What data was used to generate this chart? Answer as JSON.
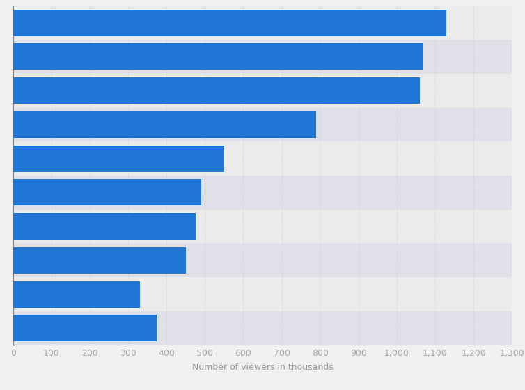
{
  "values": [
    1130,
    1070,
    1060,
    790,
    550,
    490,
    475,
    450,
    330,
    375
  ],
  "bar_color": "#2076D4",
  "background_color": "#f0f0f0",
  "plot_background_color": "#e8e8e8",
  "row_color_odd": "#ebebeb",
  "row_color_even": "#e0e0e8",
  "xlabel": "Number of viewers in thousands",
  "xlim": [
    0,
    1300
  ],
  "xticks": [
    0,
    100,
    200,
    300,
    400,
    500,
    600,
    700,
    800,
    900,
    1000,
    1100,
    1200,
    1300
  ],
  "grid_color": "#d0d0d8",
  "bar_height": 0.78,
  "xlabel_fontsize": 9,
  "tick_fontsize": 9,
  "tick_color": "#aaaaaa"
}
